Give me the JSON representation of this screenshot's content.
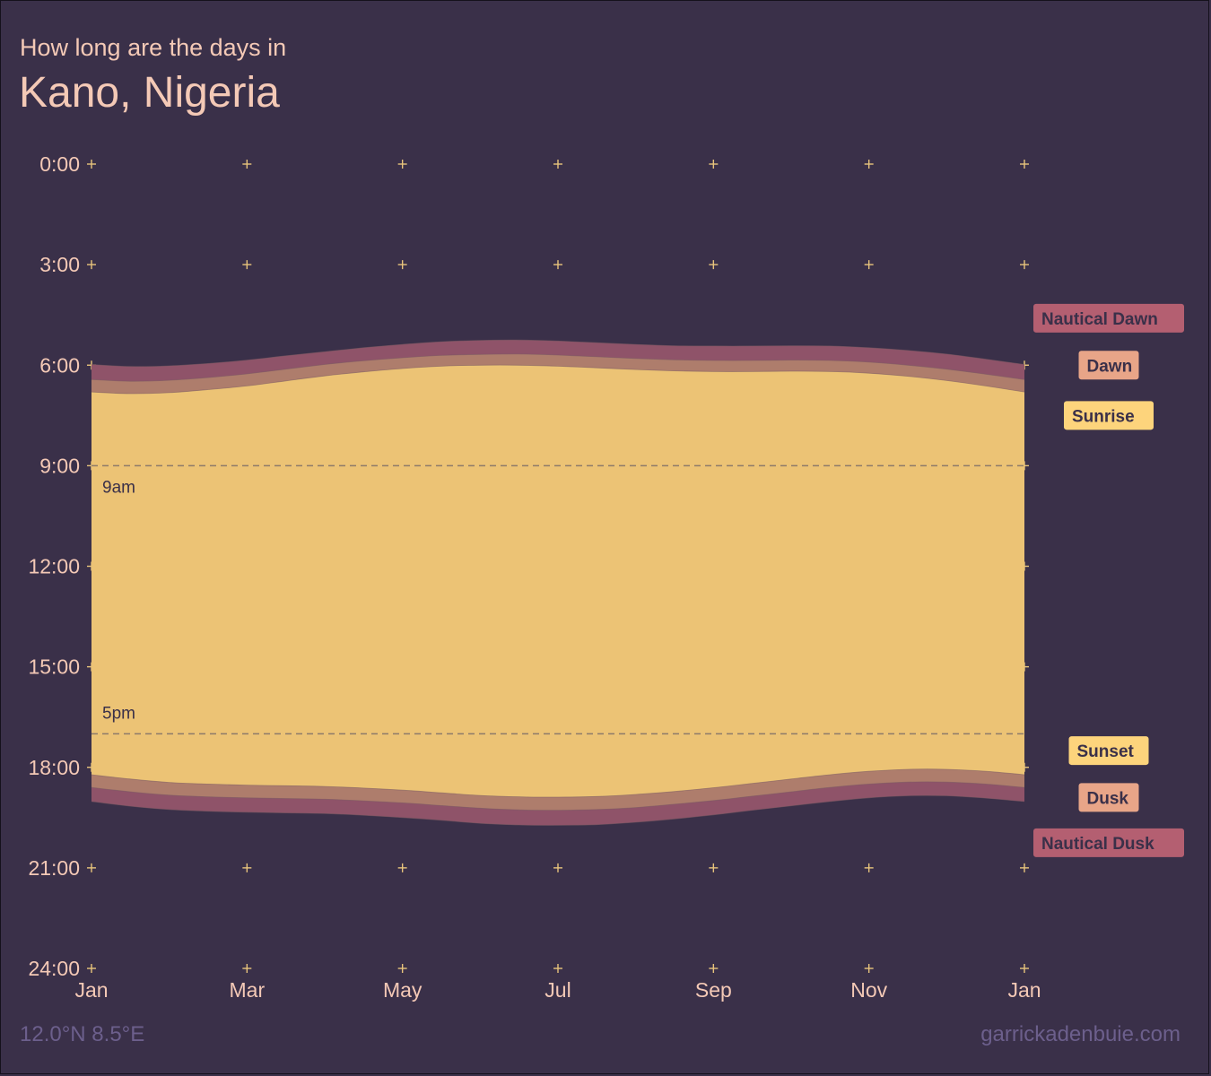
{
  "header": {
    "subtitle": "How long are the days in",
    "title": "Kano, Nigeria"
  },
  "footer": {
    "coordinates": "12.0°N 8.5°E",
    "credit": "garrickadenbuie.com"
  },
  "colors": {
    "background": "#3a3049",
    "nautical": "#8f5369",
    "civil": "#ae7d6c",
    "day": "#ecc375",
    "label_nautical": "#b45f71",
    "label_civil": "#e8a588",
    "label_sun": "#fdd47c",
    "label_text": "#3a3049",
    "axis_text": "#f4c9b6",
    "grid_mark": "#e8c47c",
    "guide_line": "#8c7a6a"
  },
  "chart_data": {
    "type": "area",
    "x_unit": "month of year (Jan = 1, following Jan = 13)",
    "y_unit": "hours after midnight",
    "xlim": [
      1,
      13
    ],
    "ylim": [
      0,
      24
    ],
    "y_reversed": true,
    "x_ticks": [
      1,
      3,
      5,
      7,
      9,
      11,
      13
    ],
    "x_tick_labels": [
      "Jan",
      "Mar",
      "May",
      "Jul",
      "Sep",
      "Nov",
      "Jan"
    ],
    "y_ticks": [
      0,
      3,
      6,
      9,
      12,
      15,
      18,
      21,
      24
    ],
    "y_tick_labels": [
      "0:00",
      "3:00",
      "6:00",
      "9:00",
      "12:00",
      "15:00",
      "18:00",
      "21:00",
      "24:00"
    ],
    "x": [
      1,
      1.5,
      2,
      2.5,
      3,
      3.5,
      4,
      4.5,
      5,
      5.5,
      6,
      6.5,
      7,
      7.5,
      8,
      8.5,
      9,
      9.5,
      10,
      10.5,
      11,
      11.5,
      12,
      12.5,
      13
    ],
    "series": [
      {
        "name": "Nautical Dawn",
        "values": [
          5.98,
          6.04,
          6.02,
          5.95,
          5.85,
          5.72,
          5.6,
          5.48,
          5.38,
          5.3,
          5.26,
          5.25,
          5.28,
          5.33,
          5.38,
          5.42,
          5.43,
          5.43,
          5.42,
          5.43,
          5.48,
          5.56,
          5.67,
          5.82,
          5.98
        ]
      },
      {
        "name": "Dawn",
        "values": [
          6.43,
          6.48,
          6.45,
          6.37,
          6.26,
          6.12,
          5.98,
          5.87,
          5.78,
          5.71,
          5.68,
          5.67,
          5.7,
          5.75,
          5.8,
          5.84,
          5.86,
          5.86,
          5.85,
          5.86,
          5.91,
          6.0,
          6.12,
          6.27,
          6.43
        ]
      },
      {
        "name": "Sunrise",
        "values": [
          6.8,
          6.85,
          6.82,
          6.73,
          6.62,
          6.47,
          6.32,
          6.2,
          6.1,
          6.03,
          6.0,
          6.0,
          6.03,
          6.08,
          6.13,
          6.17,
          6.19,
          6.19,
          6.18,
          6.19,
          6.24,
          6.33,
          6.46,
          6.62,
          6.8
        ]
      },
      {
        "name": "Sunset",
        "values": [
          18.22,
          18.35,
          18.45,
          18.5,
          18.53,
          18.55,
          18.57,
          18.62,
          18.68,
          18.76,
          18.84,
          18.88,
          18.89,
          18.87,
          18.81,
          18.72,
          18.61,
          18.48,
          18.35,
          18.22,
          18.12,
          18.06,
          18.06,
          18.12,
          18.22
        ]
      },
      {
        "name": "Dusk",
        "values": [
          18.6,
          18.73,
          18.83,
          18.88,
          18.91,
          18.93,
          18.95,
          19.0,
          19.06,
          19.14,
          19.22,
          19.27,
          19.28,
          19.26,
          19.2,
          19.1,
          18.99,
          18.86,
          18.73,
          18.6,
          18.5,
          18.44,
          18.44,
          18.5,
          18.6
        ]
      },
      {
        "name": "Nautical Dusk",
        "values": [
          19.02,
          19.16,
          19.26,
          19.31,
          19.34,
          19.36,
          19.38,
          19.43,
          19.5,
          19.58,
          19.67,
          19.72,
          19.73,
          19.71,
          19.64,
          19.54,
          19.42,
          19.28,
          19.15,
          19.02,
          18.91,
          18.85,
          18.85,
          18.92,
          19.02
        ]
      }
    ],
    "reference_lines": [
      {
        "y": 9,
        "label": "9am"
      },
      {
        "y": 17,
        "label": "5pm"
      }
    ],
    "legend": [
      {
        "label": "Nautical Dawn",
        "kind": "nautical",
        "y": 4.6
      },
      {
        "label": "Dawn",
        "kind": "civil",
        "y": 6.0
      },
      {
        "label": "Sunrise",
        "kind": "sun",
        "y": 7.5
      },
      {
        "label": "Sunset",
        "kind": "sun",
        "y": 17.5
      },
      {
        "label": "Dusk",
        "kind": "civil",
        "y": 18.9
      },
      {
        "label": "Nautical Dusk",
        "kind": "nautical",
        "y": 20.25
      }
    ],
    "legend_placement": "right",
    "grid": "plus markers at tick intersections"
  }
}
